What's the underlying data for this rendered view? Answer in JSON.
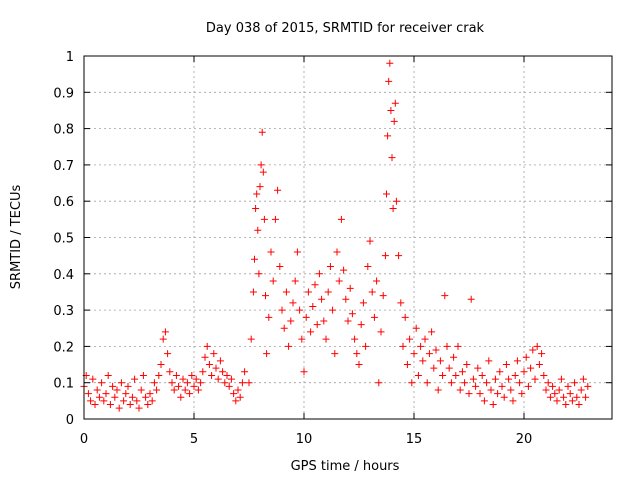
{
  "chart_data": {
    "type": "scatter",
    "title": "Day 038 of 2015, SRMTID for receiver crak",
    "xlabel": "GPS time / hours",
    "ylabel": "SRMTID / TECUs",
    "xlim": [
      0,
      24
    ],
    "ylim": [
      0,
      1
    ],
    "xticks": [
      0,
      5,
      10,
      15,
      20
    ],
    "xtick_labels": [
      "0",
      "5",
      "10",
      "15",
      "20"
    ],
    "yticks": [
      0,
      0.1,
      0.2,
      0.3,
      0.4,
      0.5,
      0.6,
      0.7,
      0.8,
      0.9,
      1
    ],
    "ytick_labels": [
      "0",
      "0.1",
      "0.2",
      "0.3",
      "0.4",
      "0.5",
      "0.6",
      "0.7",
      "0.8",
      "0.9",
      "1"
    ],
    "grid": true,
    "marker": "plus",
    "color": "#ff0000",
    "series": [
      {
        "name": "SRMTID",
        "points": [
          [
            0.0,
            0.09
          ],
          [
            0.1,
            0.12
          ],
          [
            0.2,
            0.07
          ],
          [
            0.3,
            0.05
          ],
          [
            0.4,
            0.11
          ],
          [
            0.5,
            0.04
          ],
          [
            0.6,
            0.08
          ],
          [
            0.7,
            0.06
          ],
          [
            0.8,
            0.1
          ],
          [
            0.9,
            0.05
          ],
          [
            1.0,
            0.07
          ],
          [
            1.1,
            0.12
          ],
          [
            1.2,
            0.04
          ],
          [
            1.3,
            0.09
          ],
          [
            1.4,
            0.06
          ],
          [
            1.5,
            0.08
          ],
          [
            1.6,
            0.03
          ],
          [
            1.7,
            0.1
          ],
          [
            1.8,
            0.05
          ],
          [
            1.9,
            0.07
          ],
          [
            2.0,
            0.09
          ],
          [
            2.1,
            0.04
          ],
          [
            2.2,
            0.06
          ],
          [
            2.3,
            0.11
          ],
          [
            2.4,
            0.05
          ],
          [
            2.5,
            0.03
          ],
          [
            2.6,
            0.08
          ],
          [
            2.7,
            0.12
          ],
          [
            2.8,
            0.06
          ],
          [
            2.9,
            0.04
          ],
          [
            3.0,
            0.07
          ],
          [
            3.1,
            0.05
          ],
          [
            3.2,
            0.1
          ],
          [
            3.3,
            0.08
          ],
          [
            3.4,
            0.12
          ],
          [
            3.5,
            0.15
          ],
          [
            3.6,
            0.22
          ],
          [
            3.7,
            0.24
          ],
          [
            3.8,
            0.18
          ],
          [
            3.9,
            0.13
          ],
          [
            4.0,
            0.1
          ],
          [
            4.1,
            0.08
          ],
          [
            4.2,
            0.12
          ],
          [
            4.3,
            0.09
          ],
          [
            4.4,
            0.06
          ],
          [
            4.5,
            0.11
          ],
          [
            4.6,
            0.08
          ],
          [
            4.7,
            0.1
          ],
          [
            4.8,
            0.07
          ],
          [
            4.9,
            0.12
          ],
          [
            5.0,
            0.09
          ],
          [
            5.1,
            0.11
          ],
          [
            5.2,
            0.08
          ],
          [
            5.3,
            0.1
          ],
          [
            5.4,
            0.13
          ],
          [
            5.5,
            0.17
          ],
          [
            5.6,
            0.2
          ],
          [
            5.7,
            0.15
          ],
          [
            5.8,
            0.12
          ],
          [
            5.9,
            0.18
          ],
          [
            6.0,
            0.14
          ],
          [
            6.1,
            0.11
          ],
          [
            6.2,
            0.16
          ],
          [
            6.3,
            0.13
          ],
          [
            6.4,
            0.1
          ],
          [
            6.5,
            0.12
          ],
          [
            6.6,
            0.09
          ],
          [
            6.7,
            0.11
          ],
          [
            6.8,
            0.07
          ],
          [
            6.9,
            0.05
          ],
          [
            7.0,
            0.08
          ],
          [
            7.1,
            0.06
          ],
          [
            7.2,
            0.1
          ],
          [
            7.3,
            0.13
          ],
          [
            7.5,
            0.1
          ],
          [
            7.6,
            0.22
          ],
          [
            7.7,
            0.35
          ],
          [
            7.75,
            0.44
          ],
          [
            7.8,
            0.58
          ],
          [
            7.85,
            0.62
          ],
          [
            7.9,
            0.52
          ],
          [
            7.95,
            0.4
          ],
          [
            8.0,
            0.64
          ],
          [
            8.05,
            0.7
          ],
          [
            8.1,
            0.79
          ],
          [
            8.15,
            0.68
          ],
          [
            8.2,
            0.55
          ],
          [
            8.25,
            0.34
          ],
          [
            8.3,
            0.18
          ],
          [
            8.4,
            0.28
          ],
          [
            8.5,
            0.46
          ],
          [
            8.6,
            0.38
          ],
          [
            8.7,
            0.55
          ],
          [
            8.8,
            0.63
          ],
          [
            8.9,
            0.42
          ],
          [
            9.0,
            0.3
          ],
          [
            9.1,
            0.25
          ],
          [
            9.2,
            0.35
          ],
          [
            9.3,
            0.2
          ],
          [
            9.4,
            0.27
          ],
          [
            9.5,
            0.32
          ],
          [
            9.6,
            0.38
          ],
          [
            9.7,
            0.46
          ],
          [
            9.8,
            0.3
          ],
          [
            9.9,
            0.22
          ],
          [
            10.0,
            0.13
          ],
          [
            10.1,
            0.28
          ],
          [
            10.2,
            0.35
          ],
          [
            10.3,
            0.24
          ],
          [
            10.4,
            0.31
          ],
          [
            10.5,
            0.37
          ],
          [
            10.6,
            0.26
          ],
          [
            10.7,
            0.4
          ],
          [
            10.8,
            0.33
          ],
          [
            10.9,
            0.27
          ],
          [
            11.0,
            0.22
          ],
          [
            11.1,
            0.35
          ],
          [
            11.2,
            0.42
          ],
          [
            11.3,
            0.3
          ],
          [
            11.4,
            0.18
          ],
          [
            11.5,
            0.46
          ],
          [
            11.6,
            0.38
          ],
          [
            11.7,
            0.55
          ],
          [
            11.8,
            0.41
          ],
          [
            11.9,
            0.33
          ],
          [
            12.0,
            0.27
          ],
          [
            12.1,
            0.36
          ],
          [
            12.2,
            0.29
          ],
          [
            12.3,
            0.22
          ],
          [
            12.4,
            0.18
          ],
          [
            12.5,
            0.15
          ],
          [
            12.6,
            0.26
          ],
          [
            12.7,
            0.32
          ],
          [
            12.8,
            0.2
          ],
          [
            12.9,
            0.42
          ],
          [
            13.0,
            0.49
          ],
          [
            13.1,
            0.35
          ],
          [
            13.2,
            0.28
          ],
          [
            13.3,
            0.38
          ],
          [
            13.4,
            0.1
          ],
          [
            13.5,
            0.24
          ],
          [
            13.6,
            0.34
          ],
          [
            13.7,
            0.45
          ],
          [
            13.75,
            0.62
          ],
          [
            13.8,
            0.78
          ],
          [
            13.85,
            0.93
          ],
          [
            13.9,
            0.98
          ],
          [
            13.95,
            0.85
          ],
          [
            14.0,
            0.72
          ],
          [
            14.05,
            0.58
          ],
          [
            14.1,
            0.82
          ],
          [
            14.15,
            0.87
          ],
          [
            14.2,
            0.6
          ],
          [
            14.3,
            0.45
          ],
          [
            14.4,
            0.32
          ],
          [
            14.5,
            0.2
          ],
          [
            14.6,
            0.28
          ],
          [
            14.7,
            0.15
          ],
          [
            14.8,
            0.22
          ],
          [
            14.9,
            0.1
          ],
          [
            15.0,
            0.18
          ],
          [
            15.1,
            0.25
          ],
          [
            15.2,
            0.12
          ],
          [
            15.3,
            0.2
          ],
          [
            15.4,
            0.16
          ],
          [
            15.5,
            0.22
          ],
          [
            15.6,
            0.1
          ],
          [
            15.7,
            0.18
          ],
          [
            15.8,
            0.24
          ],
          [
            15.9,
            0.14
          ],
          [
            16.0,
            0.19
          ],
          [
            16.1,
            0.08
          ],
          [
            16.2,
            0.16
          ],
          [
            16.3,
            0.12
          ],
          [
            16.4,
            0.34
          ],
          [
            16.5,
            0.2
          ],
          [
            16.6,
            0.14
          ],
          [
            16.7,
            0.1
          ],
          [
            16.8,
            0.17
          ],
          [
            16.9,
            0.12
          ],
          [
            17.0,
            0.2
          ],
          [
            17.1,
            0.08
          ],
          [
            17.2,
            0.13
          ],
          [
            17.3,
            0.1
          ],
          [
            17.4,
            0.15
          ],
          [
            17.5,
            0.07
          ],
          [
            17.6,
            0.33
          ],
          [
            17.7,
            0.11
          ],
          [
            17.8,
            0.09
          ],
          [
            17.9,
            0.14
          ],
          [
            18.0,
            0.07
          ],
          [
            18.1,
            0.12
          ],
          [
            18.2,
            0.05
          ],
          [
            18.3,
            0.1
          ],
          [
            18.4,
            0.16
          ],
          [
            18.5,
            0.08
          ],
          [
            18.6,
            0.04
          ],
          [
            18.7,
            0.11
          ],
          [
            18.8,
            0.07
          ],
          [
            18.9,
            0.13
          ],
          [
            19.0,
            0.09
          ],
          [
            19.1,
            0.06
          ],
          [
            19.2,
            0.15
          ],
          [
            19.3,
            0.11
          ],
          [
            19.4,
            0.08
          ],
          [
            19.5,
            0.05
          ],
          [
            19.6,
            0.12
          ],
          [
            19.7,
            0.16
          ],
          [
            19.8,
            0.1
          ],
          [
            19.9,
            0.07
          ],
          [
            20.0,
            0.13
          ],
          [
            20.1,
            0.17
          ],
          [
            20.2,
            0.09
          ],
          [
            20.3,
            0.14
          ],
          [
            20.4,
            0.19
          ],
          [
            20.5,
            0.11
          ],
          [
            20.6,
            0.2
          ],
          [
            20.7,
            0.15
          ],
          [
            20.8,
            0.18
          ],
          [
            20.9,
            0.12
          ],
          [
            21.0,
            0.08
          ],
          [
            21.1,
            0.1
          ],
          [
            21.2,
            0.06
          ],
          [
            21.3,
            0.09
          ],
          [
            21.4,
            0.07
          ],
          [
            21.5,
            0.05
          ],
          [
            21.6,
            0.08
          ],
          [
            21.7,
            0.11
          ],
          [
            21.8,
            0.06
          ],
          [
            21.9,
            0.04
          ],
          [
            22.0,
            0.09
          ],
          [
            22.1,
            0.07
          ],
          [
            22.2,
            0.05
          ],
          [
            22.3,
            0.1
          ],
          [
            22.4,
            0.06
          ],
          [
            22.5,
            0.04
          ],
          [
            22.6,
            0.08
          ],
          [
            22.7,
            0.11
          ],
          [
            22.8,
            0.06
          ],
          [
            22.9,
            0.09
          ]
        ]
      }
    ]
  }
}
